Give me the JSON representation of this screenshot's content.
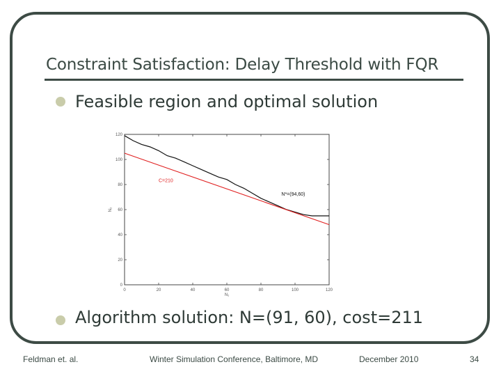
{
  "slide": {
    "title": "Constraint Satisfaction: Delay Threshold with FQR",
    "bullets": [
      {
        "text": "Feasible region and optimal solution"
      },
      {
        "text": "Algorithm solution: N=(91, 60), cost=211"
      }
    ],
    "footer": {
      "author": "Feldman et. al.",
      "venue": "Winter Simulation Conference, Baltimore, MD",
      "date": "December 2010",
      "page": "34"
    }
  },
  "chart_data": {
    "type": "line",
    "xlabel": "N₁",
    "ylabel": "N₂",
    "xlim": [
      0,
      120
    ],
    "ylim": [
      0,
      120
    ],
    "xticks": [
      "0",
      "20",
      "40",
      "60",
      "80",
      "100",
      "120"
    ],
    "yticks": [
      "0",
      "20",
      "40",
      "60",
      "80",
      "100",
      "120"
    ],
    "series": [
      {
        "color": "#111111",
        "x": [
          0,
          5,
          10,
          15,
          20,
          25,
          30,
          35,
          40,
          45,
          50,
          55,
          60,
          65,
          70,
          75,
          80,
          85,
          90,
          95,
          100,
          105,
          110,
          115,
          120
        ],
        "y": [
          119,
          115,
          112,
          110,
          107,
          103,
          101,
          98,
          95,
          92,
          89,
          86,
          84,
          80,
          77,
          73,
          69,
          66,
          63,
          60,
          58,
          56,
          55,
          55,
          55
        ]
      },
      {
        "color": "#e02020",
        "x": [
          0,
          120
        ],
        "y": [
          105,
          48
        ]
      }
    ],
    "annotations": [
      {
        "text": "C=210",
        "color": "#e02020",
        "x": 20,
        "y": 82
      },
      {
        "text": "N*=(94,60)",
        "color": "#111111",
        "x": 92,
        "y": 71
      }
    ]
  }
}
